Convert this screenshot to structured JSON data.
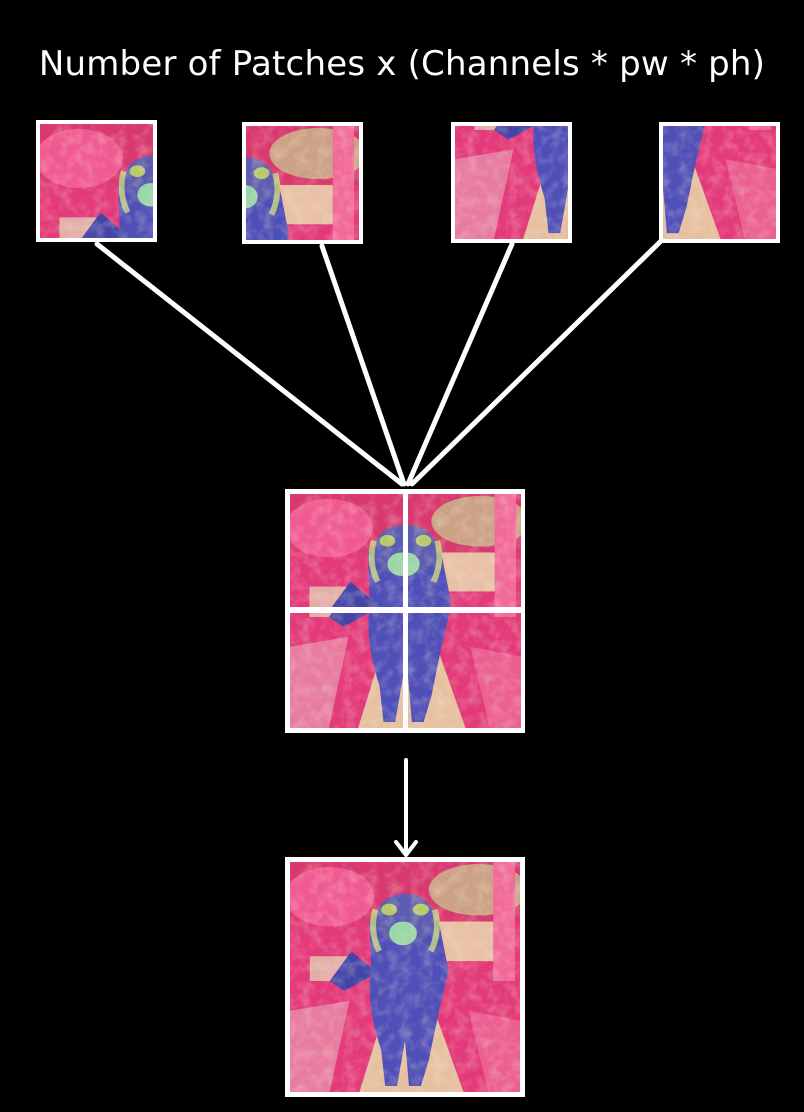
{
  "title": "Number of Patches x (Channels * pw * ph)",
  "colors": {
    "background": "#000000",
    "line": "#ffffff",
    "patch_pink": "#e33a7a",
    "patch_hot": "#ff4d8d",
    "patch_cream": "#e6d9a8",
    "patch_blue": "#4f4fb8",
    "patch_green": "#b7c96a"
  },
  "patches": [
    {
      "name": "patch-top-left"
    },
    {
      "name": "patch-top-right"
    },
    {
      "name": "patch-bottom-left"
    },
    {
      "name": "patch-bottom-right"
    }
  ],
  "icons": [
    "down-arrow-icon"
  ]
}
